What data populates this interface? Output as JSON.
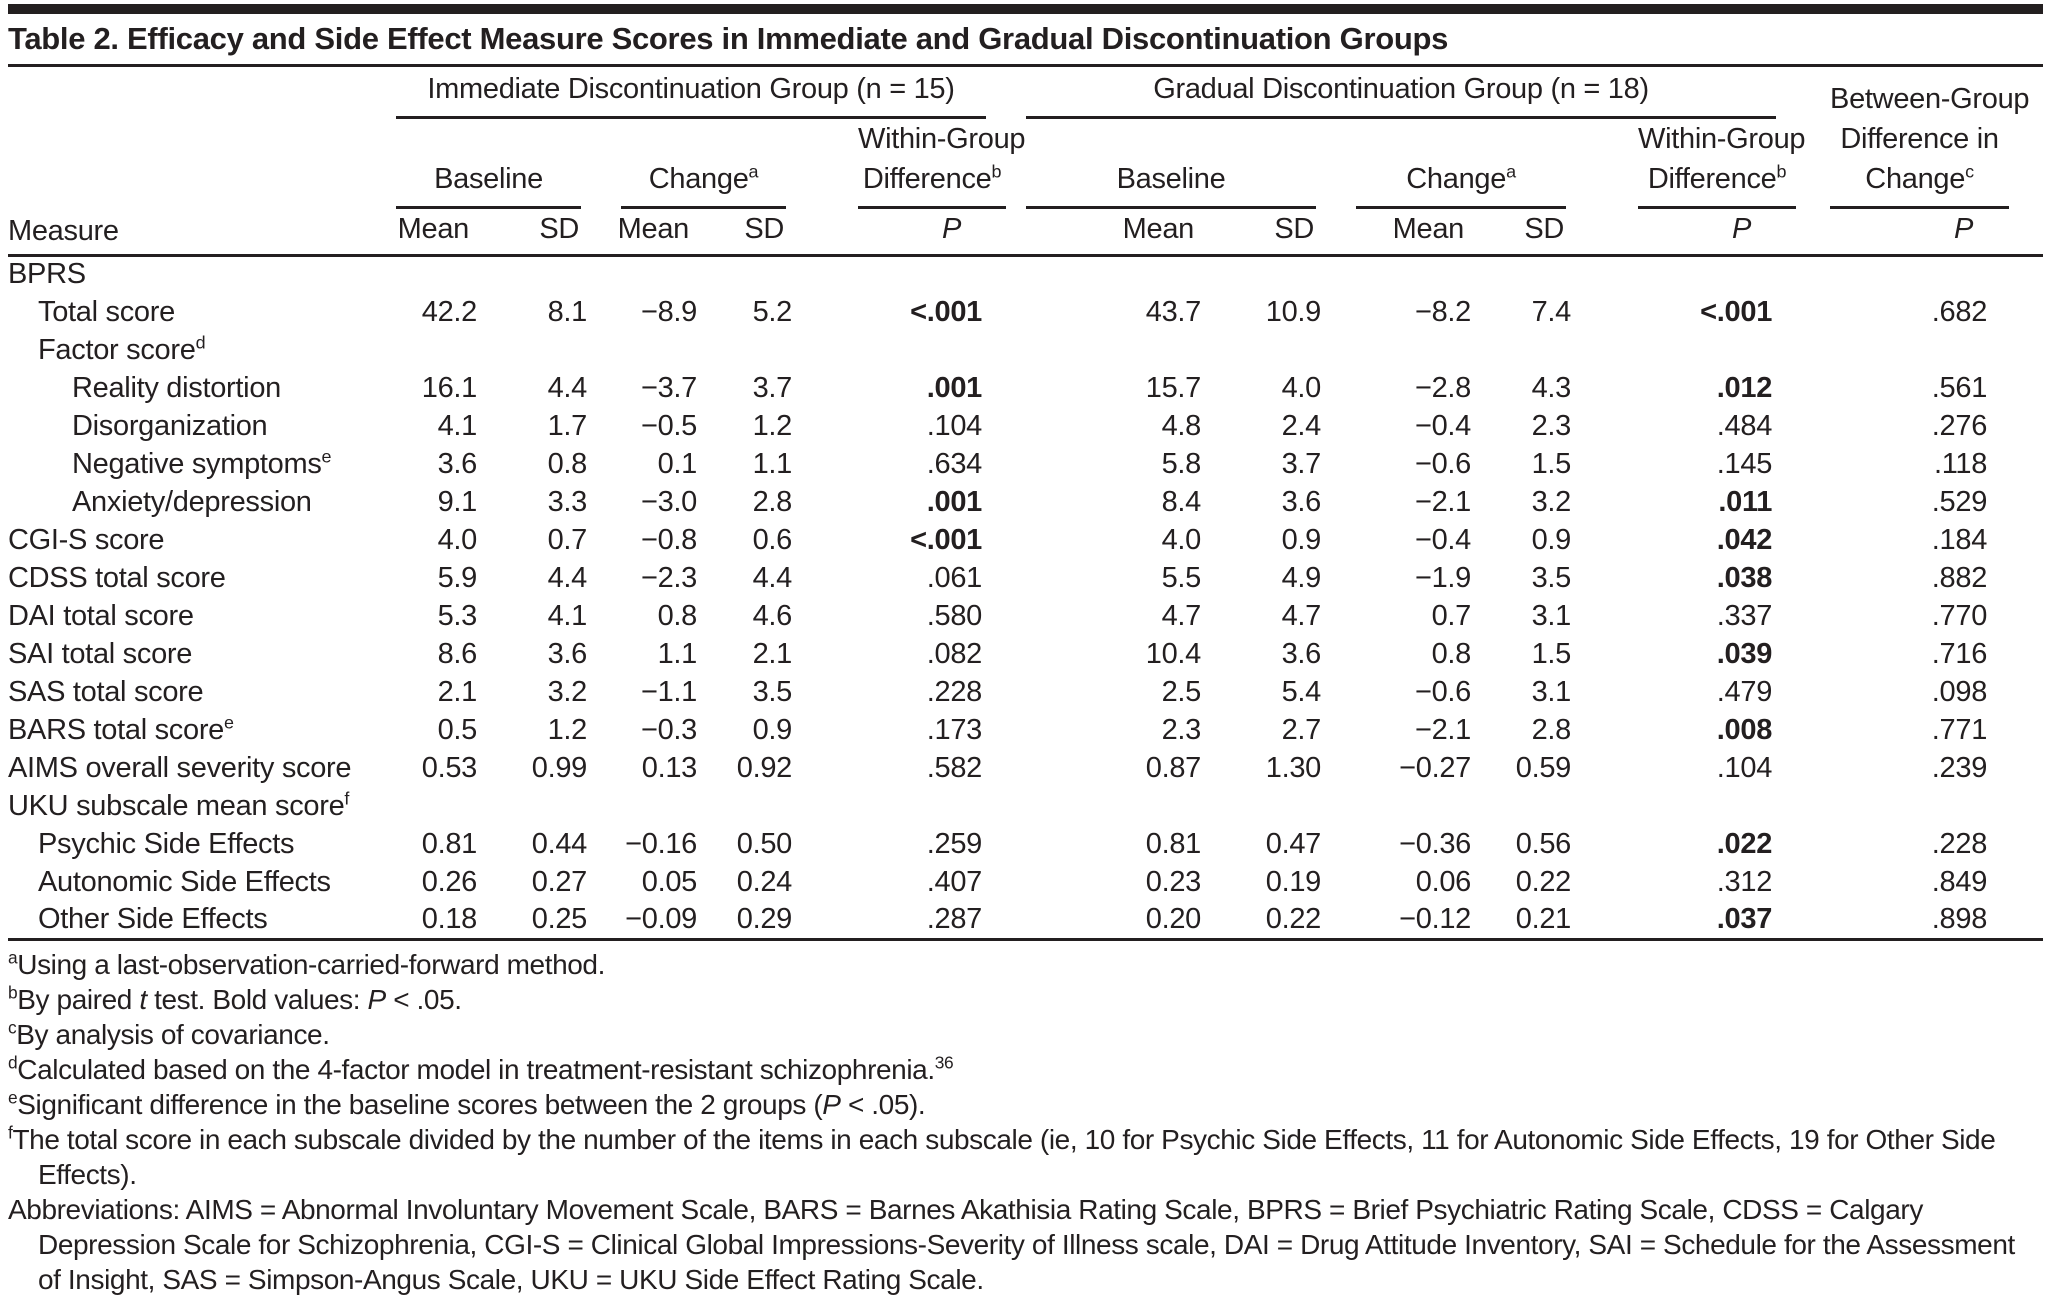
{
  "page": {
    "title": "Table 2. Efficacy and Side Effect Measure Scores in Immediate and Gradual Discontinuation Groups"
  },
  "table": {
    "measure_label": "Measure",
    "mean_label": "Mean",
    "sd_label": "SD",
    "p_label": "P",
    "baseline_label": "Baseline",
    "change_label": "Change",
    "change_sup": "a",
    "within_line1": "Within-Group",
    "within_line2": "Difference",
    "within_sup": "b",
    "groups": [
      {
        "label": "Immediate Discontinuation Group (n = 15)"
      },
      {
        "label": "Gradual Discontinuation Group (n = 18)"
      }
    ],
    "between": {
      "line1": "Between-Group",
      "line2": "Difference in",
      "line3": "Change",
      "sup": "c"
    },
    "rows": [
      {
        "measure": "BPRS",
        "sup": "",
        "indent": 0,
        "values": [
          "",
          "",
          "",
          "",
          "",
          "",
          "",
          "",
          "",
          "",
          ""
        ],
        "bold": []
      },
      {
        "measure": "Total score",
        "sup": "",
        "indent": 1,
        "values": [
          "42.2",
          "8.1",
          "−8.9",
          "5.2",
          "<.001",
          "43.7",
          "10.9",
          "−8.2",
          "7.4",
          "<.001",
          ".682"
        ],
        "bold": [
          4,
          9
        ]
      },
      {
        "measure": "Factor score",
        "sup": "d",
        "indent": 1,
        "values": [
          "",
          "",
          "",
          "",
          "",
          "",
          "",
          "",
          "",
          "",
          ""
        ],
        "bold": []
      },
      {
        "measure": "Reality distortion",
        "sup": "",
        "indent": 2,
        "values": [
          "16.1",
          "4.4",
          "−3.7",
          "3.7",
          ".001",
          "15.7",
          "4.0",
          "−2.8",
          "4.3",
          ".012",
          ".561"
        ],
        "bold": [
          4,
          9
        ]
      },
      {
        "measure": "Disorganization",
        "sup": "",
        "indent": 2,
        "values": [
          "4.1",
          "1.7",
          "−0.5",
          "1.2",
          ".104",
          "4.8",
          "2.4",
          "−0.4",
          "2.3",
          ".484",
          ".276"
        ],
        "bold": []
      },
      {
        "measure": "Negative symptoms",
        "sup": "e",
        "indent": 2,
        "values": [
          "3.6",
          "0.8",
          "0.1",
          "1.1",
          ".634",
          "5.8",
          "3.7",
          "−0.6",
          "1.5",
          ".145",
          ".118"
        ],
        "bold": []
      },
      {
        "measure": "Anxiety/depression",
        "sup": "",
        "indent": 2,
        "values": [
          "9.1",
          "3.3",
          "−3.0",
          "2.8",
          ".001",
          "8.4",
          "3.6",
          "−2.1",
          "3.2",
          ".011",
          ".529"
        ],
        "bold": [
          4,
          9
        ]
      },
      {
        "measure": "CGI-S score",
        "sup": "",
        "indent": 0,
        "values": [
          "4.0",
          "0.7",
          "−0.8",
          "0.6",
          "<.001",
          "4.0",
          "0.9",
          "−0.4",
          "0.9",
          ".042",
          ".184"
        ],
        "bold": [
          4,
          9
        ]
      },
      {
        "measure": "CDSS total score",
        "sup": "",
        "indent": 0,
        "values": [
          "5.9",
          "4.4",
          "−2.3",
          "4.4",
          ".061",
          "5.5",
          "4.9",
          "−1.9",
          "3.5",
          ".038",
          ".882"
        ],
        "bold": [
          9
        ]
      },
      {
        "measure": "DAI total score",
        "sup": "",
        "indent": 0,
        "values": [
          "5.3",
          "4.1",
          "0.8",
          "4.6",
          ".580",
          "4.7",
          "4.7",
          "0.7",
          "3.1",
          ".337",
          ".770"
        ],
        "bold": []
      },
      {
        "measure": "SAI total score",
        "sup": "",
        "indent": 0,
        "values": [
          "8.6",
          "3.6",
          "1.1",
          "2.1",
          ".082",
          "10.4",
          "3.6",
          "0.8",
          "1.5",
          ".039",
          ".716"
        ],
        "bold": [
          9
        ]
      },
      {
        "measure": "SAS total score",
        "sup": "",
        "indent": 0,
        "values": [
          "2.1",
          "3.2",
          "−1.1",
          "3.5",
          ".228",
          "2.5",
          "5.4",
          "−0.6",
          "3.1",
          ".479",
          ".098"
        ],
        "bold": []
      },
      {
        "measure": "BARS total score",
        "sup": "e",
        "indent": 0,
        "values": [
          "0.5",
          "1.2",
          "−0.3",
          "0.9",
          ".173",
          "2.3",
          "2.7",
          "−2.1",
          "2.8",
          ".008",
          ".771"
        ],
        "bold": [
          9
        ]
      },
      {
        "measure": "AIMS overall severity score",
        "sup": "",
        "indent": 0,
        "values": [
          "0.53",
          "0.99",
          "0.13",
          "0.92",
          ".582",
          "0.87",
          "1.30",
          "−0.27",
          "0.59",
          ".104",
          ".239"
        ],
        "bold": []
      },
      {
        "measure": "UKU subscale mean score",
        "sup": "f",
        "indent": 0,
        "values": [
          "",
          "",
          "",
          "",
          "",
          "",
          "",
          "",
          "",
          "",
          ""
        ],
        "bold": []
      },
      {
        "measure": "Psychic Side Effects",
        "sup": "",
        "indent": 1,
        "values": [
          "0.81",
          "0.44",
          "−0.16",
          "0.50",
          ".259",
          "0.81",
          "0.47",
          "−0.36",
          "0.56",
          ".022",
          ".228"
        ],
        "bold": [
          9
        ]
      },
      {
        "measure": "Autonomic Side Effects",
        "sup": "",
        "indent": 1,
        "values": [
          "0.26",
          "0.27",
          "0.05",
          "0.24",
          ".407",
          "0.23",
          "0.19",
          "0.06",
          "0.22",
          ".312",
          ".849"
        ],
        "bold": []
      },
      {
        "measure": "Other Side Effects",
        "sup": "",
        "indent": 1,
        "values": [
          "0.18",
          "0.25",
          "−0.09",
          "0.29",
          ".287",
          "0.20",
          "0.22",
          "−0.12",
          "0.21",
          ".037",
          ".898"
        ],
        "bold": [
          9
        ]
      }
    ]
  },
  "footnotes": [
    {
      "marker": "a",
      "parts": [
        {
          "t": "Using a last-observation-carried-forward method."
        }
      ]
    },
    {
      "marker": "b",
      "parts": [
        {
          "t": "By paired "
        },
        {
          "t": "t",
          "i": true
        },
        {
          "t": " test. Bold values: "
        },
        {
          "t": "P",
          "i": true
        },
        {
          "t": " < .05."
        }
      ]
    },
    {
      "marker": "c",
      "parts": [
        {
          "t": "By analysis of covariance."
        }
      ]
    },
    {
      "marker": "d",
      "parts": [
        {
          "t": "Calculated based on the 4-factor model in treatment-resistant schizophrenia."
        },
        {
          "t": "36",
          "sup": true
        }
      ]
    },
    {
      "marker": "e",
      "parts": [
        {
          "t": "Significant difference in the baseline scores between the 2 groups ("
        },
        {
          "t": "P",
          "i": true
        },
        {
          "t": " < .05)."
        }
      ]
    },
    {
      "marker": "f",
      "parts": [
        {
          "t": "The total score in each subscale divided by the number of the items in each subscale (ie, 10 for Psychic Side Effects, 11 for Autonomic Side Effects, 19 for Other Side Effects)."
        }
      ]
    },
    {
      "marker": "",
      "parts": [
        {
          "t": "Abbreviations: AIMS = Abnormal Involuntary Movement Scale, BARS = Barnes Akathisia Rating Scale, BPRS = Brief Psychiatric Rating Scale, CDSS = Calgary Depression Scale for Schizophrenia, CGI-S = Clinical Global Impressions-Severity of Illness scale, DAI = Drug Attitude Inventory, SAI = Schedule for the Assessment of Insight, SAS = Simpson-Angus Scale, UKU = UKU Side Effect Rating Scale."
        }
      ]
    }
  ]
}
